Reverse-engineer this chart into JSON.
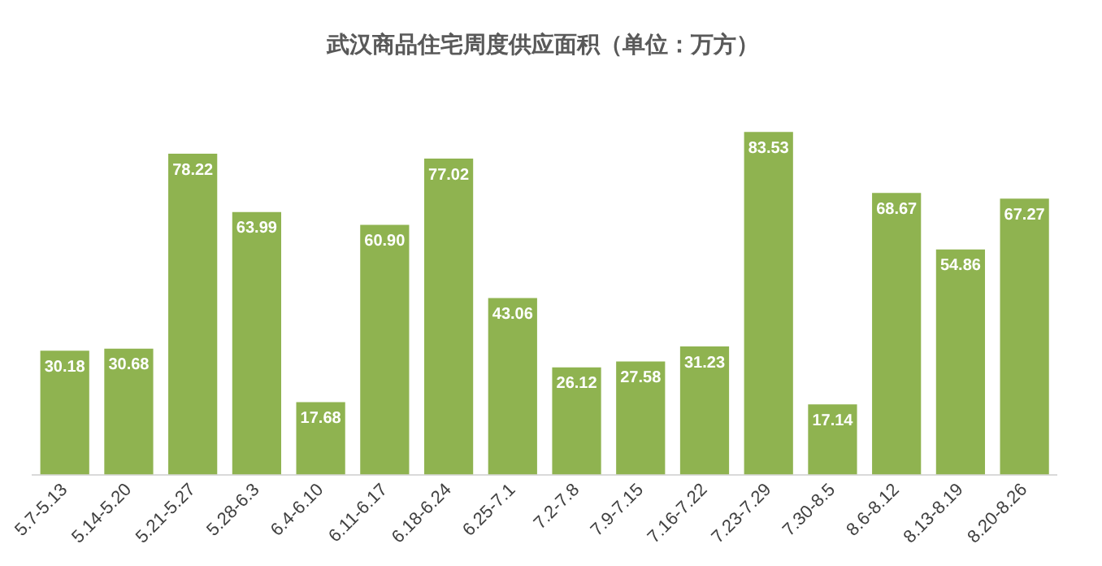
{
  "chart_data": {
    "type": "bar",
    "title": "武汉商品住宅周度供应面积（单位：万方）",
    "categories": [
      "5.7-5.13",
      "5.14-5.20",
      "5.21-5.27",
      "5.28-6.3",
      "6.4-6.10",
      "6.11-6.17",
      "6.18-6.24",
      "6.25-7.1",
      "7.2-7.8",
      "7.9-7.15",
      "7.16-7.22",
      "7.23-7.29",
      "7.30-8.5",
      "8.6-8.12",
      "8.13-8.19",
      "8.20-8.26"
    ],
    "values": [
      30.18,
      30.68,
      78.22,
      63.99,
      17.68,
      60.9,
      77.02,
      43.06,
      26.12,
      27.58,
      31.23,
      83.53,
      17.14,
      68.67,
      54.86,
      67.27
    ],
    "value_labels": [
      "30.18",
      "30.68",
      "78.22",
      "63.99",
      "17.68",
      "60.90",
      "77.02",
      "43.06",
      "26.12",
      "27.58",
      "31.23",
      "83.53",
      "17.14",
      "68.67",
      "54.86",
      "67.27"
    ],
    "color": "#8fb350",
    "grid": false,
    "legend": false,
    "tick_labels": "x"
  }
}
